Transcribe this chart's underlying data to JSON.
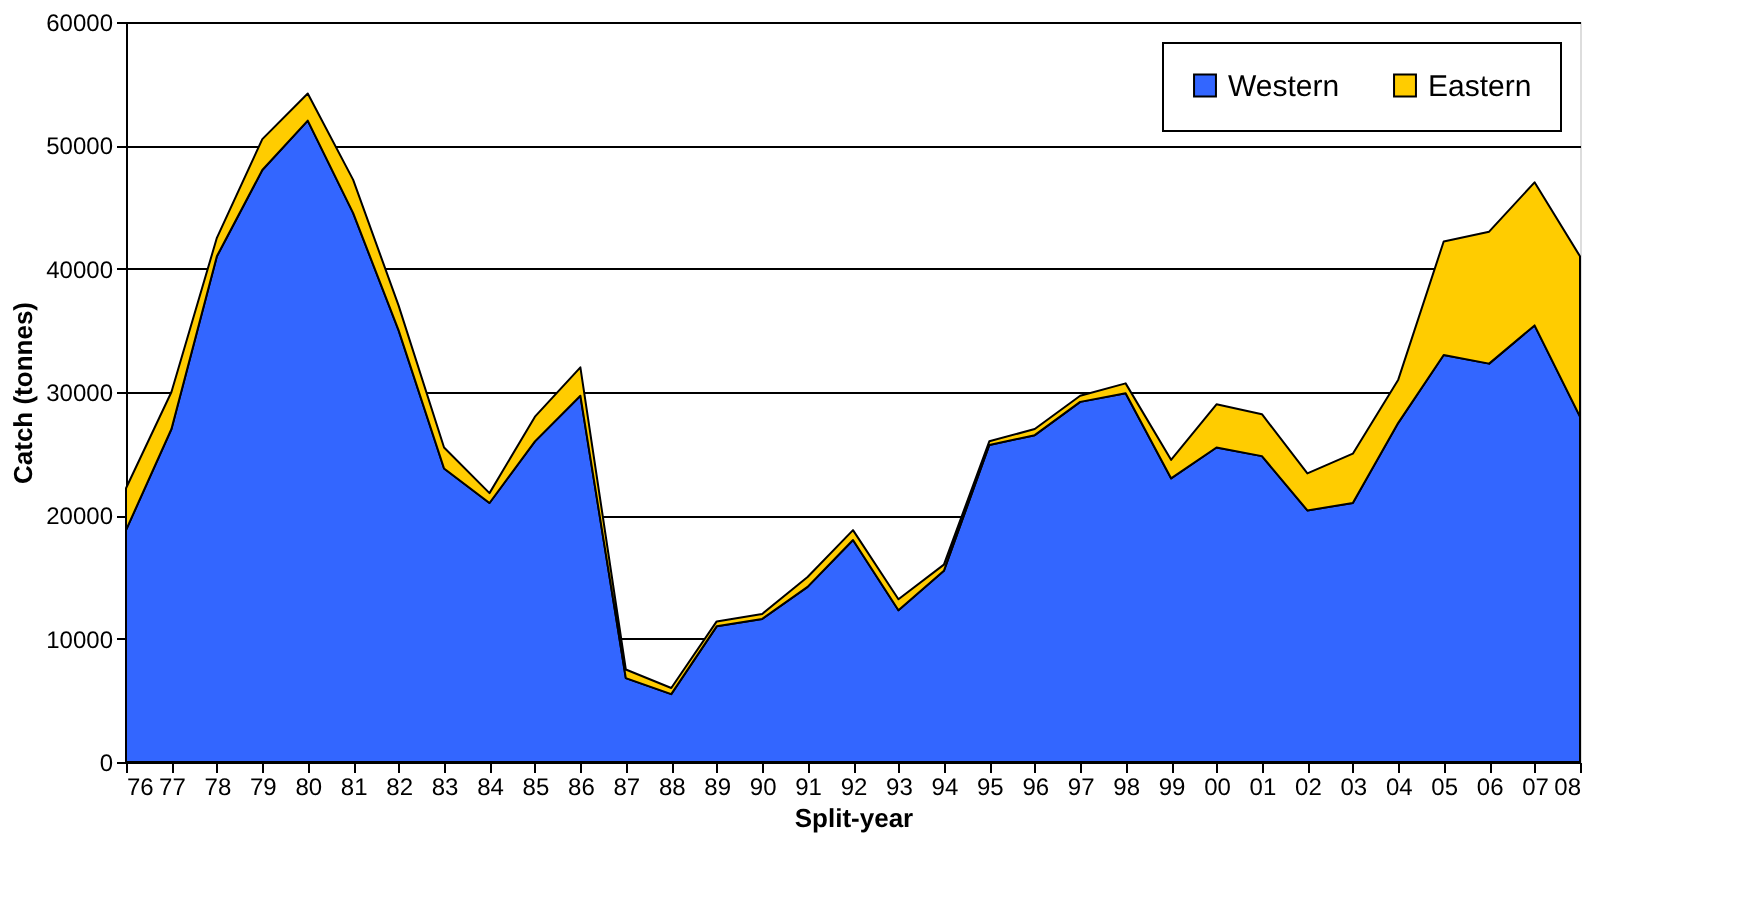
{
  "chart_data": {
    "type": "area",
    "stacked": true,
    "xlabel": "Split-year",
    "ylabel": "Catch (tonnes)",
    "categories": [
      "76",
      "77",
      "78",
      "79",
      "80",
      "81",
      "82",
      "83",
      "84",
      "85",
      "86",
      "87",
      "88",
      "89",
      "90",
      "91",
      "92",
      "93",
      "94",
      "95",
      "96",
      "97",
      "98",
      "99",
      "00",
      "01",
      "02",
      "03",
      "04",
      "05",
      "06",
      "07",
      "08"
    ],
    "series": [
      {
        "name": "Western",
        "color": "#3366ff",
        "values": [
          18800,
          27000,
          41000,
          48000,
          52000,
          44500,
          35000,
          23800,
          21000,
          26000,
          29700,
          6800,
          5500,
          11000,
          11600,
          14200,
          18000,
          12300,
          15500,
          25700,
          26500,
          29200,
          29900,
          23000,
          25500,
          24800,
          20400,
          21000,
          27500,
          33000,
          32300,
          35400,
          28000
        ]
      },
      {
        "name": "Eastern",
        "color": "#ffcc00",
        "values": [
          3400,
          3000,
          1500,
          2500,
          2200,
          2700,
          2000,
          1700,
          800,
          2000,
          2300,
          700,
          500,
          400,
          400,
          800,
          800,
          900,
          500,
          300,
          500,
          500,
          800,
          1500,
          3500,
          3400,
          3000,
          4000,
          3500,
          9200,
          10700,
          11600,
          13000
        ]
      }
    ],
    "ylim": [
      0,
      60000
    ],
    "yticks": [
      0,
      10000,
      20000,
      30000,
      40000,
      50000,
      60000
    ],
    "grid": "y",
    "legend": "top right"
  }
}
